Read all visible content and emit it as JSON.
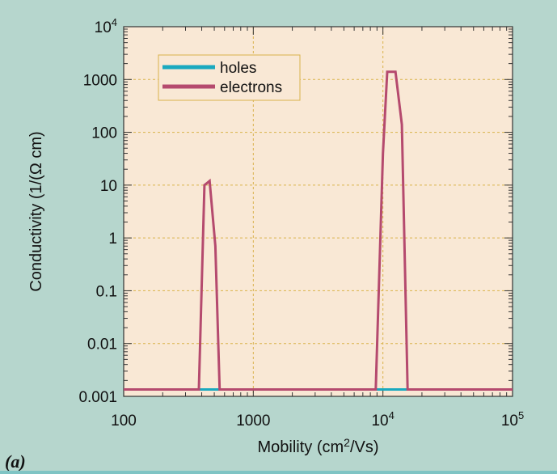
{
  "colors": {
    "background": "#b6d6cd",
    "plot_background": "#f9e8d5",
    "grid": "#d9b24a",
    "axis": "#333333",
    "holes": "#1aa9bf",
    "electrons": "#b54a6e"
  },
  "panel_label": "(a)",
  "chart_data": {
    "type": "line",
    "xscale": "log",
    "yscale": "log",
    "xlabel": "Mobility (cm2/Vs)",
    "ylabel": "Conductivity (1/(Ω cm)",
    "xlim": [
      100,
      100000
    ],
    "ylim": [
      0.001,
      10000
    ],
    "grid": true,
    "legend": "top-left",
    "x_ticks": [
      {
        "value": 100,
        "base": "100",
        "sup": ""
      },
      {
        "value": 1000,
        "base": "1000",
        "sup": ""
      },
      {
        "value": 10000,
        "base": "10",
        "sup": "4"
      },
      {
        "value": 100000,
        "base": "10",
        "sup": "5"
      }
    ],
    "y_ticks": [
      {
        "value": 0.001,
        "base": "0.001",
        "sup": ""
      },
      {
        "value": 0.01,
        "base": "0.01",
        "sup": ""
      },
      {
        "value": 0.1,
        "base": "0.1",
        "sup": ""
      },
      {
        "value": 1,
        "base": "1",
        "sup": ""
      },
      {
        "value": 10,
        "base": "10",
        "sup": ""
      },
      {
        "value": 100,
        "base": "100",
        "sup": ""
      },
      {
        "value": 1000,
        "base": "1000",
        "sup": ""
      },
      {
        "value": 10000,
        "base": "10",
        "sup": "4"
      }
    ],
    "series": [
      {
        "name": "holes",
        "color": "#1aa9bf",
        "x": [
          100,
          100000
        ],
        "y": [
          0.00135,
          0.00135
        ]
      },
      {
        "name": "electrons",
        "color": "#b54a6e",
        "x": [
          100,
          380,
          420,
          460,
          510,
          550,
          8800,
          10000,
          10800,
          12500,
          14000,
          15500,
          100000
        ],
        "y": [
          0.00135,
          0.00135,
          10,
          12,
          0.7,
          0.00135,
          0.00135,
          40,
          1400,
          1400,
          140,
          0.00135,
          0.00135
        ]
      }
    ]
  }
}
